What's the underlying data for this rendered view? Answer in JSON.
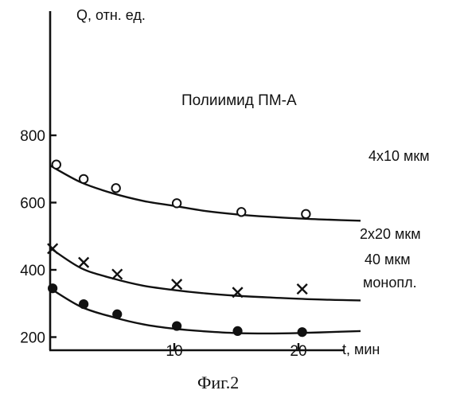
{
  "chart_data": {
    "type": "scatter",
    "title": "",
    "xlabel": "t, мин",
    "ylabel": "Q, отн. ед.",
    "xlim": [
      0,
      25
    ],
    "ylim": [
      0,
      1000
    ],
    "x_ticks": [
      10,
      20
    ],
    "x_tick_labels": [
      "10",
      "20"
    ],
    "y_ticks": [
      200,
      400,
      600,
      800
    ],
    "y_tick_labels": [
      "200",
      "400",
      "600",
      "800"
    ],
    "grid": false,
    "annotation": "Полиимид ПМ-А",
    "caption": "Фиг.2",
    "series": [
      {
        "name": "4x10 мкм",
        "marker": "open-circle",
        "x": [
          0.5,
          2.7,
          5.3,
          10.2,
          15.4,
          20.6
        ],
        "y": [
          713,
          670,
          643,
          598,
          572,
          566
        ],
        "fit_x": [
          0,
          2.5,
          5,
          7.5,
          10,
          12.5,
          15,
          17.5,
          20,
          22.5,
          25
        ],
        "fit_y": [
          710,
          660,
          628,
          605,
          590,
          575,
          565,
          558,
          553,
          549,
          546
        ]
      },
      {
        "name": "2x20 мкм",
        "marker": "cross",
        "x": [
          0.2,
          2.7,
          5.4,
          10.2,
          15.1,
          20.3
        ],
        "y": [
          463,
          422,
          387,
          357,
          333,
          343
        ],
        "fit_x": [
          0,
          2.5,
          5,
          7.5,
          10,
          12.5,
          15,
          17.5,
          20,
          22.5,
          25
        ],
        "fit_y": [
          465,
          405,
          375,
          353,
          340,
          330,
          323,
          318,
          314,
          311,
          309
        ]
      },
      {
        "name": "40 мкм монопл.",
        "label_lines": [
          "40 мкм",
          "монопл."
        ],
        "marker": "filled-circle",
        "x": [
          0.2,
          2.7,
          5.4,
          10.2,
          15.1,
          20.3
        ],
        "y": [
          345,
          298,
          268,
          233,
          218,
          215
        ],
        "fit_x": [
          0,
          2.5,
          5,
          7.5,
          10,
          12.5,
          15,
          17.5,
          20,
          22.5,
          25
        ],
        "fit_y": [
          345,
          290,
          260,
          238,
          225,
          217,
          212,
          211,
          212,
          215,
          218
        ]
      }
    ]
  }
}
